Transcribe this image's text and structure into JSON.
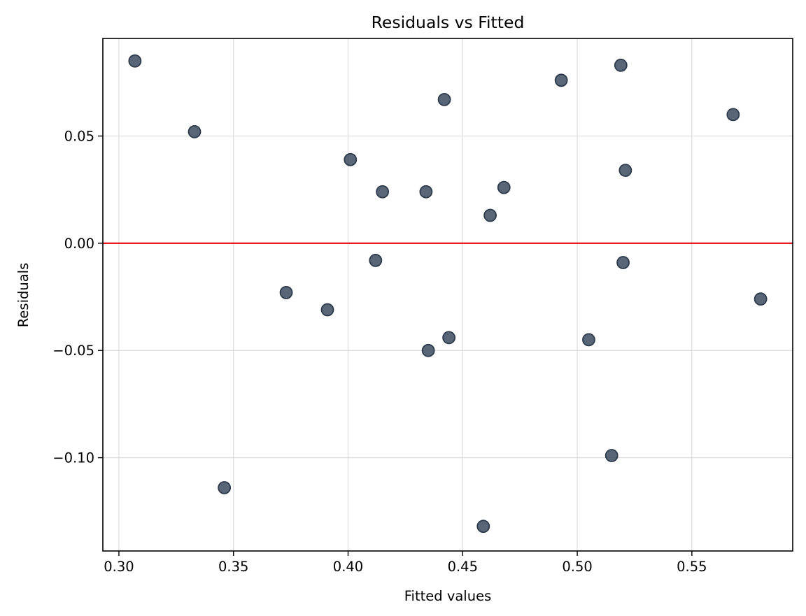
{
  "chart_data": {
    "type": "scatter",
    "title": "Residuals vs Fitted",
    "xlabel": "Fitted values",
    "ylabel": "Residuals",
    "xlim": [
      0.293,
      0.594
    ],
    "ylim": [
      -0.1435,
      0.0955
    ],
    "xticks": [
      0.3,
      0.35,
      0.4,
      0.45,
      0.5,
      0.55
    ],
    "xtick_labels": [
      "0.30",
      "0.35",
      "0.40",
      "0.45",
      "0.50",
      "0.55"
    ],
    "yticks": [
      -0.1,
      -0.05,
      0.0,
      0.05
    ],
    "ytick_labels": [
      "−0.10",
      "−0.05",
      "0.00",
      "0.05"
    ],
    "grid": true,
    "reference_line": {
      "y": 0,
      "color": "#e41a1c"
    },
    "marker_color": "#3b4b5f",
    "points": [
      {
        "x": 0.307,
        "y": 0.085
      },
      {
        "x": 0.333,
        "y": 0.052
      },
      {
        "x": 0.346,
        "y": -0.114
      },
      {
        "x": 0.373,
        "y": -0.023
      },
      {
        "x": 0.391,
        "y": -0.031
      },
      {
        "x": 0.401,
        "y": 0.039
      },
      {
        "x": 0.412,
        "y": -0.008
      },
      {
        "x": 0.415,
        "y": 0.024
      },
      {
        "x": 0.434,
        "y": 0.024
      },
      {
        "x": 0.435,
        "y": -0.05
      },
      {
        "x": 0.442,
        "y": 0.067
      },
      {
        "x": 0.444,
        "y": -0.044
      },
      {
        "x": 0.459,
        "y": -0.132
      },
      {
        "x": 0.462,
        "y": 0.013
      },
      {
        "x": 0.468,
        "y": 0.026
      },
      {
        "x": 0.493,
        "y": 0.076
      },
      {
        "x": 0.505,
        "y": -0.045
      },
      {
        "x": 0.515,
        "y": -0.099
      },
      {
        "x": 0.519,
        "y": 0.083
      },
      {
        "x": 0.52,
        "y": -0.009
      },
      {
        "x": 0.521,
        "y": 0.034
      },
      {
        "x": 0.568,
        "y": 0.06
      },
      {
        "x": 0.58,
        "y": -0.026
      }
    ]
  }
}
